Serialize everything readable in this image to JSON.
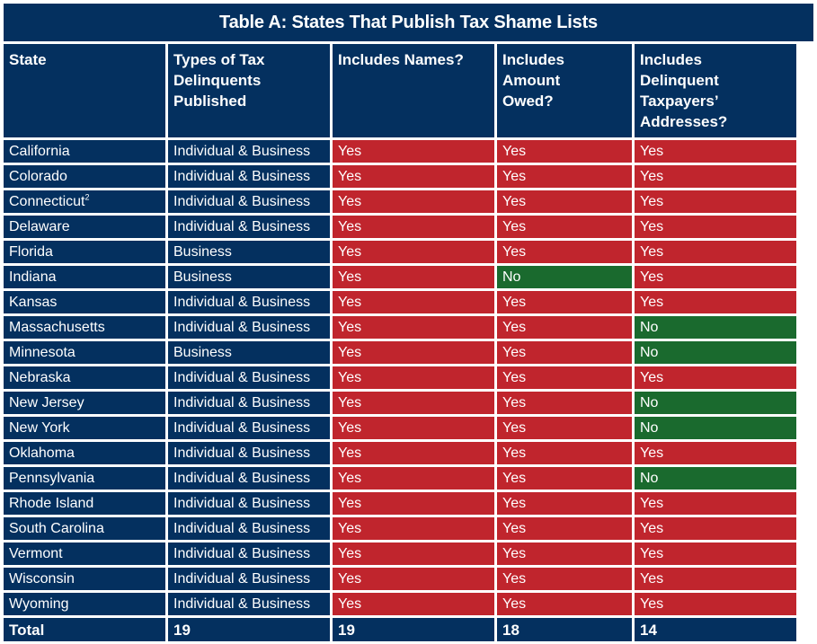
{
  "title": "Table A: States That Publish Tax Shame Lists",
  "headers": [
    "State",
    "Types of Tax Delinquents Published",
    "Includes Names?",
    "Includes Amount Owed?",
    "Includes Delinquent Taxpayers’ Addresses?"
  ],
  "rows": [
    {
      "state": "California",
      "sup": "",
      "type": "Individual & Business",
      "names": "Yes",
      "amount": "Yes",
      "address": "Yes"
    },
    {
      "state": "Colorado",
      "sup": "",
      "type": "Individual & Business",
      "names": "Yes",
      "amount": "Yes",
      "address": "Yes"
    },
    {
      "state": "Connecticut",
      "sup": "2",
      "type": "Individual & Business",
      "names": "Yes",
      "amount": "Yes",
      "address": "Yes"
    },
    {
      "state": "Delaware",
      "sup": "",
      "type": "Individual & Business",
      "names": "Yes",
      "amount": "Yes",
      "address": "Yes"
    },
    {
      "state": "Florida",
      "sup": "",
      "type": "Business",
      "names": "Yes",
      "amount": "Yes",
      "address": "Yes"
    },
    {
      "state": "Indiana",
      "sup": "",
      "type": "Business",
      "names": "Yes",
      "amount": "No",
      "address": "Yes"
    },
    {
      "state": "Kansas",
      "sup": "",
      "type": "Individual & Business",
      "names": "Yes",
      "amount": "Yes",
      "address": "Yes"
    },
    {
      "state": "Massachusetts",
      "sup": "",
      "type": "Individual & Business",
      "names": "Yes",
      "amount": "Yes",
      "address": "No"
    },
    {
      "state": "Minnesota",
      "sup": "",
      "type": "Business",
      "names": "Yes",
      "amount": "Yes",
      "address": "No"
    },
    {
      "state": "Nebraska",
      "sup": "",
      "type": "Individual & Business",
      "names": "Yes",
      "amount": "Yes",
      "address": "Yes"
    },
    {
      "state": "New Jersey",
      "sup": "",
      "type": "Individual & Business",
      "names": "Yes",
      "amount": "Yes",
      "address": "No"
    },
    {
      "state": "New York",
      "sup": "",
      "type": "Individual & Business",
      "names": "Yes",
      "amount": "Yes",
      "address": "No"
    },
    {
      "state": "Oklahoma",
      "sup": "",
      "type": "Individual & Business",
      "names": "Yes",
      "amount": "Yes",
      "address": "Yes"
    },
    {
      "state": "Pennsylvania",
      "sup": "",
      "type": "Individual & Business",
      "names": "Yes",
      "amount": "Yes",
      "address": "No"
    },
    {
      "state": "Rhode Island",
      "sup": "",
      "type": "Individual & Business",
      "names": "Yes",
      "amount": "Yes",
      "address": "Yes"
    },
    {
      "state": "South Carolina",
      "sup": "",
      "type": "Individual & Business",
      "names": "Yes",
      "amount": "Yes",
      "address": "Yes"
    },
    {
      "state": "Vermont",
      "sup": "",
      "type": "Individual & Business",
      "names": "Yes",
      "amount": "Yes",
      "address": "Yes"
    },
    {
      "state": "Wisconsin",
      "sup": "",
      "type": "Individual & Business",
      "names": "Yes",
      "amount": "Yes",
      "address": "Yes"
    },
    {
      "state": "Wyoming",
      "sup": "",
      "type": "Individual & Business",
      "names": "Yes",
      "amount": "Yes",
      "address": "Yes"
    }
  ],
  "total": {
    "label": "Total",
    "type": "19",
    "names": "19",
    "amount": "18",
    "address": "14"
  },
  "colors": {
    "header": "#04305f",
    "yes": "#c0252d",
    "no": "#1a6a2e"
  }
}
